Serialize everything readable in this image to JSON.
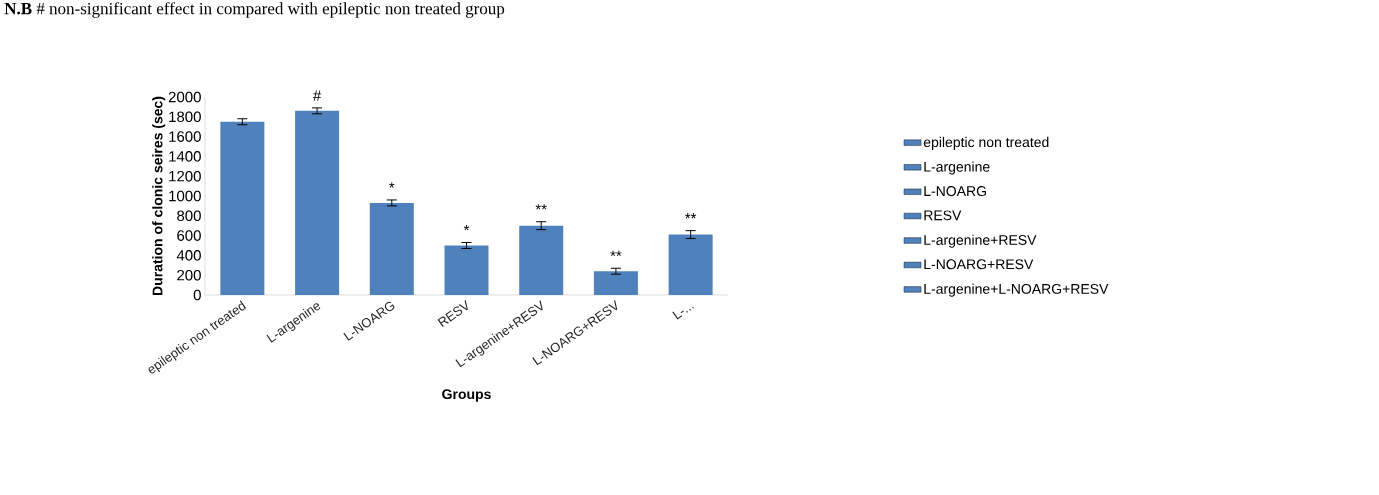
{
  "chart_data": {
    "type": "bar",
    "title": "**N.B** # non-significant effect in compared with epileptic non treated group",
    "categories": [
      "epileptic non treated",
      "L-argenine",
      "L-NOARG",
      "RESV",
      "L-argenine+RESV",
      "L-NOARG+RESV",
      "L-..."
    ],
    "series": [
      {
        "name": "epileptic non treated",
        "color": "#4f81bd",
        "values": [
          1750,
          null,
          null,
          null,
          null,
          null,
          null
        ],
        "errors": [
          30,
          null,
          null,
          null,
          null,
          null,
          null
        ]
      },
      {
        "name": "L-argenine",
        "color": "#4f81bd",
        "values": [
          null,
          1860,
          null,
          null,
          null,
          null,
          null
        ],
        "errors": [
          null,
          30,
          null,
          null,
          null,
          null,
          null
        ]
      },
      {
        "name": "L-NOARG",
        "color": "#4f81bd",
        "values": [
          null,
          null,
          930,
          null,
          null,
          null,
          null
        ],
        "errors": [
          null,
          null,
          30,
          null,
          null,
          null,
          null
        ]
      },
      {
        "name": "RESV",
        "color": "#4f81bd",
        "values": [
          null,
          null,
          null,
          500,
          null,
          null,
          null
        ],
        "errors": [
          null,
          null,
          null,
          30,
          null,
          null,
          null
        ]
      },
      {
        "name": "L-argenine+RESV",
        "color": "#4f81bd",
        "values": [
          null,
          null,
          null,
          null,
          700,
          null,
          null
        ],
        "errors": [
          null,
          null,
          null,
          null,
          40,
          null,
          null
        ]
      },
      {
        "name": "L-NOARG+RESV",
        "color": "#4f81bd",
        "values": [
          null,
          null,
          null,
          null,
          null,
          240,
          null
        ],
        "errors": [
          null,
          null,
          null,
          null,
          null,
          30,
          null
        ]
      },
      {
        "name": "L-argenine+L-NOARG+RESV",
        "color": "#4f81bd",
        "values": [
          null,
          null,
          null,
          null,
          null,
          null,
          610
        ],
        "errors": [
          null,
          null,
          null,
          null,
          null,
          null,
          40
        ]
      }
    ],
    "xlabel": "Groups",
    "ylabel": "Duration of clonic seires (sec)",
    "ylim": [
      0,
      2000
    ],
    "yticks": [
      0,
      200,
      400,
      600,
      800,
      1000,
      1200,
      1400,
      1600,
      1800,
      2000
    ],
    "annotations": [
      {
        "text": "#",
        "x": "L-argenine",
        "y": 1860
      },
      {
        "text": "*",
        "x": "L-NOARG",
        "y": 930
      },
      {
        "text": "*",
        "x": "RESV",
        "y": 500
      },
      {
        "text": "**",
        "x": "L-argenine+RESV",
        "y": 700
      },
      {
        "text": "**",
        "x": "L-NOARG+RESV",
        "y": 240
      },
      {
        "text": "**",
        "x": "L-...",
        "y": 610
      }
    ],
    "legend": "right",
    "grid": false
  }
}
